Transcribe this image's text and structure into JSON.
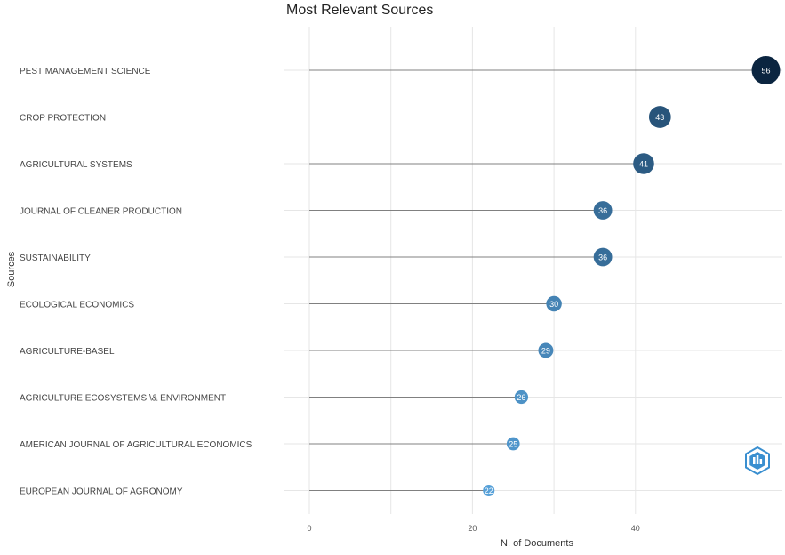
{
  "chart_data": {
    "type": "scatter",
    "subtype": "lollipop",
    "title": "Most Relevant Sources",
    "xlabel": "N. of Documents",
    "ylabel": "Sources",
    "xlim": [
      0,
      57
    ],
    "xticks": [
      0,
      20,
      40
    ],
    "grid": true,
    "legend": "none",
    "categories": [
      "PEST MANAGEMENT SCIENCE",
      "CROP PROTECTION",
      "AGRICULTURAL SYSTEMS",
      "JOURNAL OF CLEANER PRODUCTION",
      "SUSTAINABILITY",
      "ECOLOGICAL ECONOMICS",
      "AGRICULTURE-BASEL",
      "AGRICULTURE ECOSYSTEMS \\& ENVIRONMENT",
      "AMERICAN JOURNAL OF AGRICULTURAL ECONOMICS",
      "EUROPEAN JOURNAL OF AGRONOMY"
    ],
    "values": [
      56,
      43,
      41,
      36,
      36,
      30,
      29,
      26,
      25,
      22
    ],
    "colors": {
      "low": "#56a0d8",
      "high": "#0b2540",
      "segment": "#808080",
      "grid": "#e6e6e6"
    }
  },
  "logo": {
    "icon": "bibliometrix-hexagon-icon",
    "color": "#3a8fd0"
  }
}
